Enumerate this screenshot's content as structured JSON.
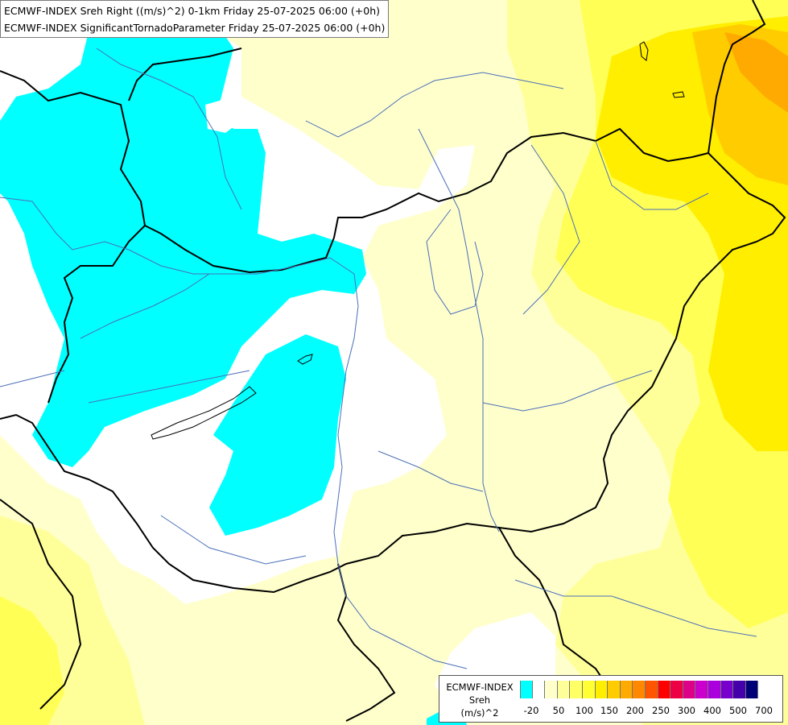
{
  "header": {
    "line1": "ECMWF-INDEX Sreh Right ((m/s)^2) 0-1km Friday 25-07-2025 06:00 (+0h)",
    "line2": "ECMWF-INDEX SignificantTornadoParameter Friday 25-07-2025 06:00 (+0h)"
  },
  "legend": {
    "title1": "ECMWF-INDEX",
    "title2": "Sreh",
    "title3": "(m/s)^2",
    "swatch_colors": [
      "#00ffff",
      "#ffffff",
      "#ffffcc",
      "#ffff99",
      "#ffff66",
      "#ffff33",
      "#ffee00",
      "#ffcc00",
      "#ffaa00",
      "#ff8800",
      "#ff5500",
      "#ff0000",
      "#ee0044",
      "#dd0088",
      "#cc00cc",
      "#aa00dd",
      "#7700cc",
      "#4400aa",
      "#000077"
    ],
    "tick_labels": [
      "-20",
      "50",
      "100",
      "150",
      "200",
      "250",
      "300",
      "400",
      "500",
      "700"
    ]
  },
  "colors": {
    "cyan_negative": "#00ffff",
    "white_zero": "#ffffff",
    "pale_yellow": "#ffffcc",
    "light_yellow": "#ffff99",
    "yellow": "#ffff55",
    "bright_yellow": "#ffee00",
    "orange": "#ffcc00",
    "dark_orange": "#ffaa00",
    "border": "#000000",
    "river": "#4a6fb8"
  }
}
